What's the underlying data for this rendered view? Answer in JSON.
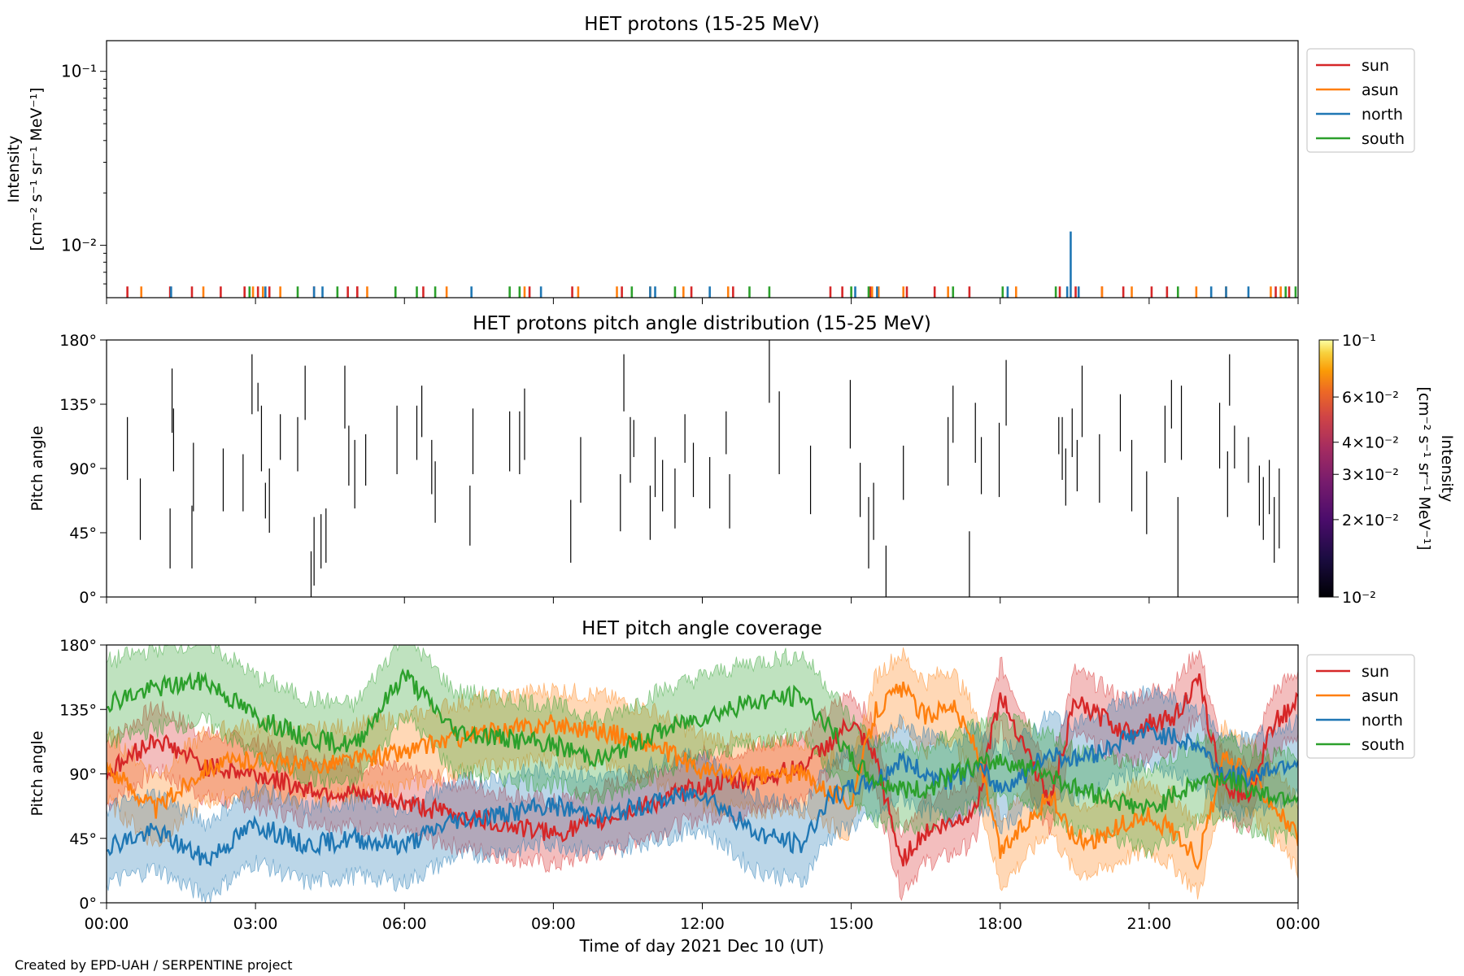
{
  "footer": "Created by EPD-UAH / SERPENTINE project",
  "colors": {
    "sun": "#d62728",
    "asun": "#ff7f0e",
    "north": "#1f77b4",
    "south": "#2ca02c"
  },
  "chart_data": [
    {
      "type": "line",
      "title": "HET protons (15-25 MeV)",
      "ylabel_line1": "Intensity",
      "ylabel_line2": "[cm⁻² s⁻¹ sr⁻¹ MeV⁻¹]",
      "yscale": "log",
      "ylim": [
        0.005,
        0.15
      ],
      "yticks": [
        {
          "value": 0.1,
          "label": "10⁻¹"
        },
        {
          "value": 0.01,
          "label": "10⁻²"
        }
      ],
      "xlim": [
        0,
        24
      ],
      "legend": {
        "placement": "outside-right-top",
        "entries": [
          "sun",
          "asun",
          "north",
          "south"
        ]
      },
      "series": [
        {
          "name": "sun",
          "x": [
            0.42,
            1.28,
            1.72,
            2.3,
            2.78,
            3.05,
            3.28,
            4.18,
            4.86,
            5.05,
            5.05,
            6.38,
            8.52,
            9.38,
            10.38,
            11.78,
            12.62,
            14.58,
            14.82,
            15.38,
            16.12,
            16.68,
            17.38,
            19.2,
            19.52,
            20.05,
            20.48,
            21.05,
            21.36,
            23.55,
            23.82
          ],
          "values": [
            0.0058,
            0.0058,
            0.0058,
            0.0058,
            0.0058,
            0.0058,
            0.0058,
            0.0058,
            0.0058,
            0.0058,
            0.0058,
            0.0058,
            0.0058,
            0.0058,
            0.0058,
            0.0058,
            0.0058,
            0.0058,
            0.0058,
            0.0058,
            0.0058,
            0.0058,
            0.0058,
            0.0058,
            0.0058,
            0.0058,
            0.0058,
            0.0058,
            0.0058,
            0.0058,
            0.0058
          ]
        },
        {
          "name": "asun",
          "x": [
            0.7,
            1.95,
            2.95,
            3.15,
            3.5,
            5.25,
            6.85,
            8.42,
            9.5,
            10.28,
            10.95,
            11.62,
            12.52,
            15.42,
            15.55,
            16.05,
            16.95,
            18.32,
            20.05,
            20.65,
            21.95,
            22.55,
            23.45,
            23.65
          ],
          "values": [
            0.0058,
            0.0058,
            0.0058,
            0.0058,
            0.0058,
            0.0058,
            0.0058,
            0.0058,
            0.0058,
            0.0058,
            0.0058,
            0.0058,
            0.0058,
            0.0058,
            0.0058,
            0.0058,
            0.0058,
            0.0058,
            0.0058,
            0.0058,
            0.0058,
            0.0058,
            0.0058,
            0.0058
          ]
        },
        {
          "name": "north",
          "x": [
            1.3,
            3.2,
            4.18,
            4.35,
            7.35,
            8.75,
            10.95,
            11.05,
            12.15,
            15.08,
            15.52,
            18.15,
            19.35,
            19.42,
            19.58,
            22.25,
            22.55,
            23.0
          ],
          "values": [
            0.0058,
            0.0058,
            0.0058,
            0.0058,
            0.0058,
            0.0058,
            0.0058,
            0.0058,
            0.0058,
            0.0058,
            0.0058,
            0.0058,
            0.0058,
            0.012,
            0.0058,
            0.0058,
            0.0058,
            0.0058
          ]
        },
        {
          "name": "south",
          "x": [
            2.88,
            3.85,
            4.65,
            5.82,
            6.25,
            6.62,
            8.12,
            8.32,
            10.58,
            11.45,
            12.95,
            13.35,
            15.0,
            15.35,
            17.05,
            18.05,
            19.12,
            21.58,
            23.75,
            23.95
          ],
          "values": [
            0.0058,
            0.0058,
            0.0058,
            0.0058,
            0.0058,
            0.0058,
            0.0058,
            0.0058,
            0.0058,
            0.0058,
            0.0058,
            0.0058,
            0.0058,
            0.0058,
            0.0058,
            0.0058,
            0.0058,
            0.0058,
            0.0058,
            0.0058
          ]
        }
      ]
    },
    {
      "type": "heatmap",
      "title": "HET protons pitch angle distribution (15-25 MeV)",
      "ylabel": "Pitch angle",
      "ylim": [
        0,
        180
      ],
      "yticks": [
        "0°",
        "45°",
        "90°",
        "135°",
        "180°"
      ],
      "xlim": [
        0,
        24
      ],
      "colorbar": {
        "label_line1": "Intensity",
        "label_line2": "[cm⁻² s⁻¹ sr⁻¹ MeV⁻¹]",
        "scale": "log",
        "range": [
          0.01,
          0.1
        ],
        "ticks": [
          {
            "value": 0.1,
            "label": "10⁻¹"
          },
          {
            "value": 0.06,
            "label": "6×10⁻²"
          },
          {
            "value": 0.04,
            "label": "4×10⁻²"
          },
          {
            "value": 0.03,
            "label": "3×10⁻²"
          },
          {
            "value": 0.02,
            "label": "2×10⁻²"
          },
          {
            "value": 0.01,
            "label": "10⁻²"
          }
        ]
      },
      "segments": [
        [
          0.42,
          82,
          126
        ],
        [
          0.68,
          40,
          83
        ],
        [
          1.28,
          20,
          62
        ],
        [
          1.32,
          115,
          160
        ],
        [
          1.35,
          88,
          132
        ],
        [
          1.72,
          20,
          64
        ],
        [
          1.75,
          60,
          108
        ],
        [
          2.35,
          60,
          104
        ],
        [
          2.75,
          60,
          100
        ],
        [
          2.93,
          128,
          170
        ],
        [
          3.05,
          130,
          150
        ],
        [
          3.12,
          88,
          134
        ],
        [
          3.2,
          55,
          80
        ],
        [
          3.28,
          45,
          90
        ],
        [
          3.5,
          96,
          128
        ],
        [
          3.85,
          88,
          126
        ],
        [
          4.0,
          124,
          162
        ],
        [
          4.12,
          0,
          32
        ],
        [
          4.18,
          8,
          56
        ],
        [
          4.32,
          20,
          58
        ],
        [
          4.42,
          24,
          62
        ],
        [
          4.8,
          118,
          162
        ],
        [
          4.88,
          78,
          120
        ],
        [
          5.0,
          62,
          110
        ],
        [
          5.22,
          78,
          114
        ],
        [
          5.85,
          86,
          134
        ],
        [
          6.25,
          96,
          134
        ],
        [
          6.35,
          112,
          148
        ],
        [
          6.55,
          72,
          110
        ],
        [
          6.62,
          52,
          95
        ],
        [
          7.32,
          36,
          78
        ],
        [
          7.38,
          86,
          132
        ],
        [
          8.12,
          88,
          130
        ],
        [
          8.32,
          86,
          130
        ],
        [
          8.42,
          96,
          146
        ],
        [
          9.35,
          24,
          68
        ],
        [
          9.55,
          66,
          112
        ],
        [
          10.35,
          46,
          86
        ],
        [
          10.42,
          130,
          170
        ],
        [
          10.55,
          80,
          126
        ],
        [
          10.62,
          98,
          124
        ],
        [
          10.95,
          40,
          78
        ],
        [
          11.05,
          70,
          112
        ],
        [
          11.2,
          60,
          96
        ],
        [
          11.45,
          48,
          90
        ],
        [
          11.65,
          94,
          128
        ],
        [
          11.82,
          70,
          108
        ],
        [
          12.15,
          62,
          98
        ],
        [
          12.48,
          100,
          130
        ],
        [
          12.55,
          48,
          86
        ],
        [
          13.35,
          136,
          180
        ],
        [
          13.55,
          86,
          144
        ],
        [
          14.18,
          58,
          106
        ],
        [
          14.98,
          104,
          152
        ],
        [
          15.18,
          56,
          94
        ],
        [
          15.35,
          20,
          70
        ],
        [
          15.45,
          40,
          80
        ],
        [
          15.7,
          0,
          36
        ],
        [
          16.05,
          68,
          106
        ],
        [
          16.95,
          78,
          126
        ],
        [
          17.05,
          108,
          148
        ],
        [
          17.38,
          0,
          46
        ],
        [
          17.5,
          94,
          136
        ],
        [
          17.62,
          72,
          112
        ],
        [
          17.98,
          70,
          122
        ],
        [
          18.12,
          120,
          166
        ],
        [
          19.18,
          100,
          126
        ],
        [
          19.25,
          82,
          126
        ],
        [
          19.32,
          64,
          104
        ],
        [
          19.45,
          98,
          132
        ],
        [
          19.55,
          74,
          110
        ],
        [
          19.65,
          112,
          162
        ],
        [
          20.0,
          66,
          114
        ],
        [
          20.42,
          102,
          142
        ],
        [
          20.65,
          60,
          110
        ],
        [
          20.95,
          44,
          88
        ],
        [
          21.32,
          94,
          134
        ],
        [
          21.45,
          118,
          152
        ],
        [
          21.58,
          0,
          70
        ],
        [
          21.65,
          96,
          148
        ],
        [
          22.42,
          90,
          136
        ],
        [
          22.58,
          56,
          102
        ],
        [
          22.62,
          134,
          170
        ],
        [
          22.72,
          90,
          120
        ],
        [
          23.0,
          80,
          112
        ],
        [
          23.22,
          50,
          92
        ],
        [
          23.3,
          40,
          84
        ],
        [
          23.42,
          58,
          96
        ],
        [
          23.52,
          24,
          70
        ],
        [
          23.62,
          34,
          90
        ]
      ]
    },
    {
      "type": "area",
      "title": "HET pitch angle coverage",
      "ylabel": "Pitch angle",
      "xlabel": "Time of day 2021 Dec 10 (UT)",
      "ylim": [
        0,
        180
      ],
      "yticks": [
        "0°",
        "45°",
        "90°",
        "135°",
        "180°"
      ],
      "xlim": [
        0,
        24
      ],
      "xticks": [
        "00:00",
        "03:00",
        "06:00",
        "09:00",
        "12:00",
        "15:00",
        "18:00",
        "21:00",
        "00:00"
      ],
      "legend": {
        "placement": "outside-right-top",
        "entries": [
          "sun",
          "asun",
          "north",
          "south"
        ]
      },
      "band_width": 22,
      "x": [
        0,
        1,
        2,
        3,
        4,
        5,
        6,
        7,
        8,
        9,
        10,
        11,
        12,
        13,
        14,
        14.5,
        15,
        15.5,
        16,
        16.5,
        17,
        17.5,
        18,
        18.5,
        19,
        19.5,
        20,
        20.5,
        21,
        21.5,
        22,
        22.5,
        23,
        23.5,
        24
      ],
      "series": [
        {
          "name": "sun",
          "values": [
            90,
            115,
            95,
            90,
            80,
            75,
            70,
            62,
            55,
            48,
            58,
            70,
            82,
            85,
            95,
            110,
            125,
            100,
            30,
            50,
            55,
            65,
            145,
            110,
            70,
            140,
            130,
            120,
            125,
            130,
            155,
            80,
            75,
            125,
            140
          ]
        },
        {
          "name": "asun",
          "values": [
            95,
            65,
            95,
            100,
            95,
            100,
            105,
            115,
            120,
            125,
            120,
            110,
            92,
            88,
            90,
            80,
            70,
            135,
            150,
            130,
            140,
            110,
            35,
            55,
            75,
            45,
            45,
            55,
            60,
            50,
            30,
            100,
            90,
            70,
            45
          ]
        },
        {
          "name": "north",
          "values": [
            40,
            50,
            30,
            55,
            40,
            45,
            40,
            58,
            62,
            68,
            60,
            70,
            78,
            50,
            40,
            70,
            80,
            85,
            100,
            90,
            85,
            95,
            80,
            90,
            105,
            100,
            105,
            115,
            120,
            115,
            110,
            90,
            88,
            95,
            100
          ]
        },
        {
          "name": "south",
          "values": [
            140,
            150,
            155,
            130,
            115,
            110,
            160,
            120,
            115,
            110,
            100,
            118,
            130,
            140,
            145,
            125,
            100,
            85,
            80,
            78,
            90,
            95,
            100,
            95,
            90,
            80,
            75,
            70,
            65,
            75,
            85,
            88,
            80,
            75,
            75
          ]
        }
      ]
    }
  ]
}
